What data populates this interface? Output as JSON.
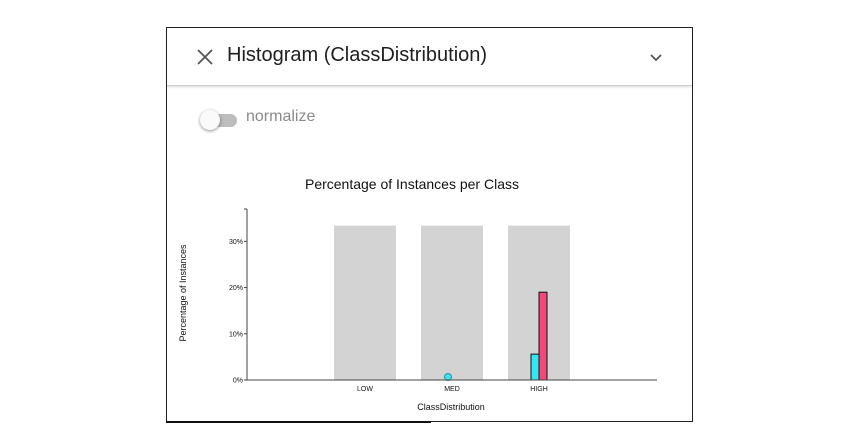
{
  "panel": {
    "title": "Histogram (ClassDistribution)",
    "close_icon": "close-icon",
    "expand_icon": "chevron-down-icon"
  },
  "toggle": {
    "label": "normalize",
    "checked": false
  },
  "colors": {
    "background_bar": "#d3d3d3",
    "series_1": "#33e6f2",
    "series_2": "#f2487a",
    "axis": "#444444"
  },
  "chart_data": {
    "type": "bar",
    "title": "Percentage of Instances per Class",
    "xlabel": "ClassDistribution",
    "ylabel": "Percentage of Instances",
    "categories": [
      "LOW",
      "MED",
      "HIGH"
    ],
    "ylim": [
      0,
      37
    ],
    "yticks": [
      0,
      10,
      20,
      30
    ],
    "ytick_labels": [
      "0%",
      "10%",
      "20%",
      "30%"
    ],
    "background_values": [
      33.4,
      33.4,
      33.4
    ],
    "series": [
      {
        "values": [
          0,
          0.7,
          5.6
        ]
      },
      {
        "values": [
          0,
          0,
          19
        ]
      }
    ],
    "grid": false,
    "legend": "none"
  }
}
